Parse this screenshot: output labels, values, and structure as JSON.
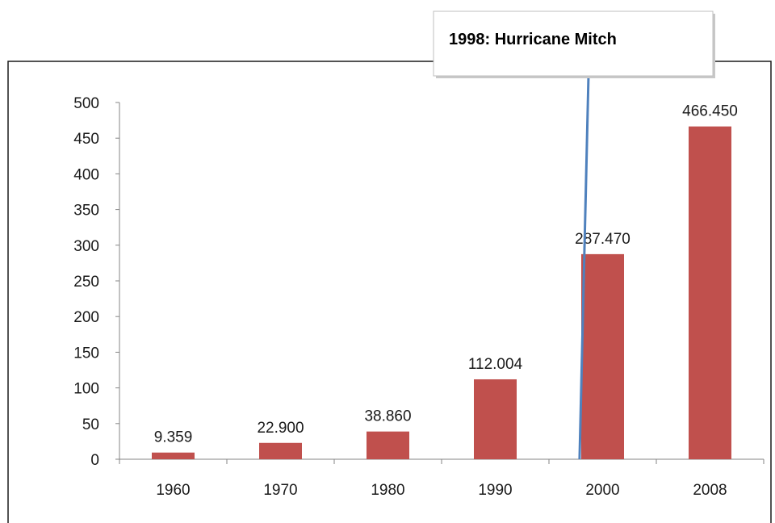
{
  "chart_data": {
    "type": "bar",
    "categories": [
      "1960",
      "1970",
      "1980",
      "1990",
      "2000",
      "2008"
    ],
    "values": [
      9.359,
      22.9,
      38.86,
      112.004,
      287.47,
      466.45
    ],
    "data_labels": [
      "9.359",
      "22.900",
      "38.860",
      "112.004",
      "287.470",
      "466.450"
    ],
    "y_ticks": [
      "0",
      "50",
      "100",
      "150",
      "200",
      "250",
      "300",
      "350",
      "400",
      "450",
      "500"
    ],
    "ylim": [
      0,
      500
    ],
    "grid": false,
    "legend": "none",
    "bar_color": "#c0504d",
    "annotation": {
      "text": "1998: Hurricane Mitch",
      "x": "1998",
      "line_color": "#4f81bd"
    },
    "title": "",
    "xlabel": "",
    "ylabel": ""
  }
}
